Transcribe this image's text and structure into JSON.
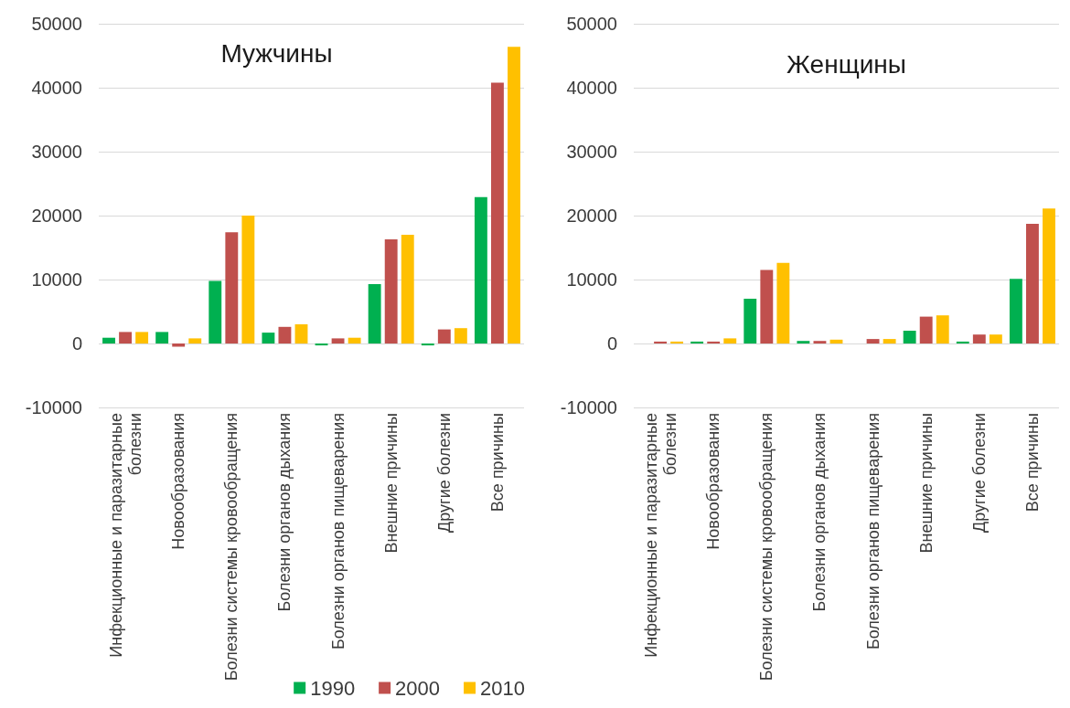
{
  "chart_data": [
    {
      "type": "bar",
      "title": "Мужчины",
      "categories": [
        "Инфекционные и паразитарные болезни",
        "Новообразования",
        "Болезни системы кровообращения",
        "Болезни органов дыхания",
        "Болезни органов пищеварения",
        "Внешние причины",
        "Другие болезни",
        "Все причины"
      ],
      "series": [
        {
          "name": "1990",
          "color": "#00b050",
          "values": [
            900,
            1800,
            9800,
            1700,
            -300,
            9300,
            -300,
            22900
          ]
        },
        {
          "name": "2000",
          "color": "#c0504d",
          "values": [
            1800,
            -500,
            17400,
            2600,
            800,
            16300,
            2200,
            40800
          ]
        },
        {
          "name": "2010",
          "color": "#ffc000",
          "values": [
            1800,
            800,
            20000,
            3000,
            900,
            17000,
            2400,
            46400
          ]
        }
      ],
      "ylim": [
        -10000,
        50000
      ],
      "yticks": [
        -10000,
        0,
        10000,
        20000,
        30000,
        40000,
        50000
      ],
      "grid": "y",
      "legend": "bottom right"
    },
    {
      "type": "bar",
      "title": "Женщины",
      "categories": [
        "Инфекционные и паразитарные болезни",
        "Новообразования",
        "Болезни системы кровообращения",
        "Болезни органов дыхания",
        "Болезни органов пищеварения",
        "Внешние причины",
        "Другие болезни",
        "Все причины"
      ],
      "series": [
        {
          "name": "1990",
          "color": "#00b050",
          "values": [
            0,
            300,
            7000,
            400,
            0,
            2000,
            300,
            10100
          ]
        },
        {
          "name": "2000",
          "color": "#c0504d",
          "values": [
            300,
            300,
            11500,
            400,
            700,
            4200,
            1400,
            18700
          ]
        },
        {
          "name": "2010",
          "color": "#ffc000",
          "values": [
            300,
            800,
            12600,
            600,
            700,
            4400,
            1400,
            21100
          ]
        }
      ],
      "ylim": [
        -10000,
        50000
      ],
      "yticks": [
        -10000,
        0,
        10000,
        20000,
        30000,
        40000,
        50000
      ],
      "grid": "y",
      "legend": false
    }
  ]
}
